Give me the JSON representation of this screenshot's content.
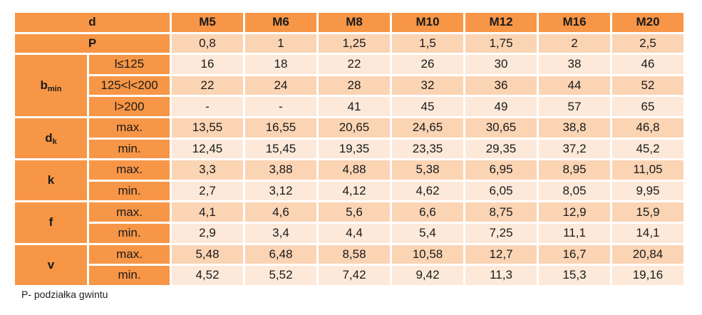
{
  "header": {
    "param_label": "d",
    "sizes": [
      "M5",
      "M6",
      "M8",
      "M10",
      "M12",
      "M16",
      "M20"
    ]
  },
  "pitch": {
    "label": "P",
    "values": [
      "0,8",
      "1",
      "1,25",
      "1,5",
      "1,75",
      "2",
      "2,5"
    ]
  },
  "groups": [
    {
      "id": "bmin",
      "symbol": "b",
      "subscript": "min",
      "rows": [
        {
          "label": "l≤125",
          "values": [
            "16",
            "18",
            "22",
            "26",
            "30",
            "38",
            "46"
          ]
        },
        {
          "label": "125<l<200",
          "values": [
            "22",
            "24",
            "28",
            "32",
            "36",
            "44",
            "52"
          ]
        },
        {
          "label": "l>200",
          "values": [
            "-",
            "-",
            "41",
            "45",
            "49",
            "57",
            "65"
          ]
        }
      ]
    },
    {
      "id": "dk",
      "symbol": "d",
      "subscript": "k",
      "rows": [
        {
          "label": "max.",
          "values": [
            "13,55",
            "16,55",
            "20,65",
            "24,65",
            "30,65",
            "38,8",
            "46,8"
          ]
        },
        {
          "label": "min.",
          "values": [
            "12,45",
            "15,45",
            "19,35",
            "23,35",
            "29,35",
            "37,2",
            "45,2"
          ]
        }
      ]
    },
    {
      "id": "k",
      "symbol": "k",
      "subscript": "",
      "rows": [
        {
          "label": "max.",
          "values": [
            "3,3",
            "3,88",
            "4,88",
            "5,38",
            "6,95",
            "8,95",
            "11,05"
          ]
        },
        {
          "label": "min.",
          "values": [
            "2,7",
            "3,12",
            "4,12",
            "4,62",
            "6,05",
            "8,05",
            "9,95"
          ]
        }
      ]
    },
    {
      "id": "f",
      "symbol": "f",
      "subscript": "",
      "rows": [
        {
          "label": "max.",
          "values": [
            "4,1",
            "4,6",
            "5,6",
            "6,6",
            "8,75",
            "12,9",
            "15,9"
          ]
        },
        {
          "label": "min.",
          "values": [
            "2,9",
            "3,4",
            "4,4",
            "5,4",
            "7,25",
            "11,1",
            "14,1"
          ]
        }
      ]
    },
    {
      "id": "v",
      "symbol": "v",
      "subscript": "",
      "rows": [
        {
          "label": "max.",
          "values": [
            "5,48",
            "6,48",
            "8,58",
            "10,58",
            "12,7",
            "16,7",
            "20,84"
          ]
        },
        {
          "label": "min.",
          "values": [
            "4,52",
            "5,52",
            "7,42",
            "9,42",
            "11,3",
            "15,3",
            "19,16"
          ]
        }
      ]
    }
  ],
  "footnote": "P- podziałka gwintu"
}
